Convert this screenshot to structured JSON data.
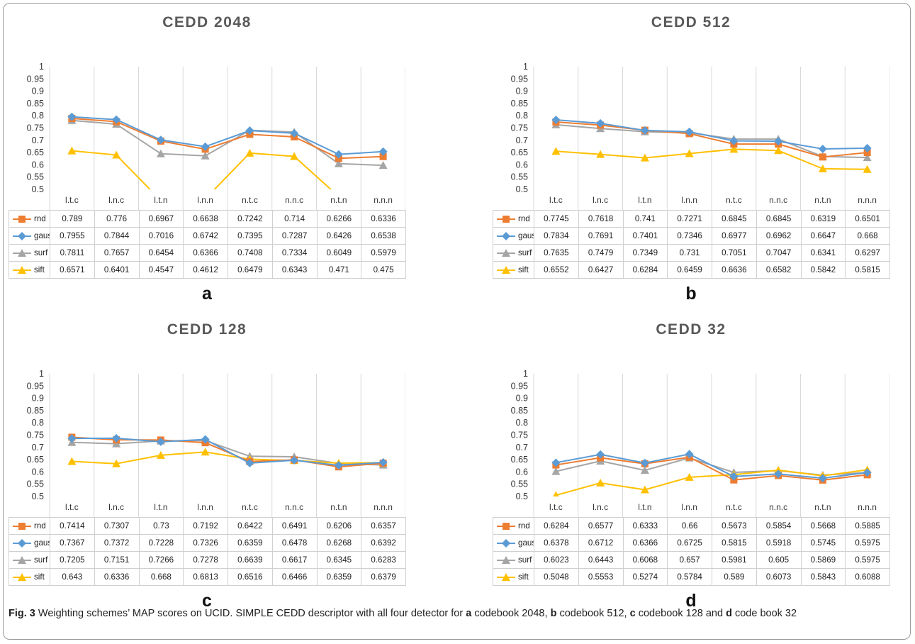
{
  "chart_data": [
    {
      "type": "line",
      "title": "CEDD 2048",
      "panel_label": "a",
      "categories": [
        "l.t.c",
        "l.n.c",
        "l.t.n",
        "l.n.n",
        "n.t.c",
        "n.n.c",
        "n.t.n",
        "n.n.n"
      ],
      "ylim": [
        0.5,
        1
      ],
      "y_ticks": [
        "0.5",
        "0.55",
        "0.6",
        "0.65",
        "0.7",
        "0.75",
        "0.8",
        "0.85",
        "0.9",
        "0.95",
        "1"
      ],
      "legend": "data-table-left",
      "series": [
        {
          "name": "rnd",
          "values": [
            "0.789",
            "0.776",
            "0.6967",
            "0.6638",
            "0.7242",
            "0.714",
            "0.6266",
            "0.6336"
          ]
        },
        {
          "name": "gauss",
          "values": [
            "0.7955",
            "0.7844",
            "0.7016",
            "0.6742",
            "0.7395",
            "0.7287",
            "0.6426",
            "0.6538"
          ]
        },
        {
          "name": "surf",
          "values": [
            "0.7811",
            "0.7657",
            "0.6454",
            "0.6366",
            "0.7408",
            "0.7334",
            "0.6049",
            "0.5979"
          ]
        },
        {
          "name": "sift",
          "values": [
            "0.6571",
            "0.6401",
            "0.4547",
            "0.4612",
            "0.6479",
            "0.6343",
            "0.471",
            "0.475"
          ]
        }
      ]
    },
    {
      "type": "line",
      "title": "CEDD 512",
      "panel_label": "b",
      "categories": [
        "l.t.c",
        "l.n.c",
        "l.t.n",
        "l.n.n",
        "n.t.c",
        "n.n.c",
        "n.t.n",
        "n.n.n"
      ],
      "ylim": [
        0.5,
        1
      ],
      "y_ticks": [
        "0.5",
        "0.55",
        "0.6",
        "0.65",
        "0.7",
        "0.75",
        "0.8",
        "0.85",
        "0.9",
        "0.95",
        "1"
      ],
      "legend": "data-table-left",
      "series": [
        {
          "name": "rnd",
          "values": [
            "0.7745",
            "0.7618",
            "0.741",
            "0.7271",
            "0.6845",
            "0.6845",
            "0.6319",
            "0.6501"
          ]
        },
        {
          "name": "gauss",
          "values": [
            "0.7834",
            "0.7691",
            "0.7401",
            "0.7346",
            "0.6977",
            "0.6962",
            "0.6647",
            "0.668"
          ]
        },
        {
          "name": "surf",
          "values": [
            "0.7635",
            "0.7479",
            "0.7349",
            "0.731",
            "0.7051",
            "0.7047",
            "0.6341",
            "0.6297"
          ]
        },
        {
          "name": "sift",
          "values": [
            "0.6552",
            "0.6427",
            "0.6284",
            "0.6459",
            "0.6636",
            "0.6582",
            "0.5842",
            "0.5815"
          ]
        }
      ]
    },
    {
      "type": "line",
      "title": "CEDD 128",
      "panel_label": "c",
      "categories": [
        "l.t.c",
        "l.n.c",
        "l.t.n",
        "l.n.n",
        "n.t.c",
        "n.n.c",
        "n.t.n",
        "n.n.n"
      ],
      "ylim": [
        0.5,
        1
      ],
      "y_ticks": [
        "0.5",
        "0.55",
        "0.6",
        "0.65",
        "0.7",
        "0.75",
        "0.8",
        "0.85",
        "0.9",
        "0.95",
        "1"
      ],
      "legend": "data-table-left",
      "series": [
        {
          "name": "rnd",
          "values": [
            "0.7414",
            "0.7307",
            "0.73",
            "0.7192",
            "0.6422",
            "0.6491",
            "0.6206",
            "0.6357"
          ]
        },
        {
          "name": "gauss",
          "values": [
            "0.7367",
            "0.7372",
            "0.7228",
            "0.7326",
            "0.6359",
            "0.6478",
            "0.6268",
            "0.6392"
          ]
        },
        {
          "name": "surf",
          "values": [
            "0.7205",
            "0.7151",
            "0.7266",
            "0.7278",
            "0.6639",
            "0.6617",
            "0.6345",
            "0.6283"
          ]
        },
        {
          "name": "sift",
          "values": [
            "0.643",
            "0.6336",
            "0.668",
            "0.6813",
            "0.6516",
            "0.6466",
            "0.6359",
            "0.6379"
          ]
        }
      ]
    },
    {
      "type": "line",
      "title": "CEDD 32",
      "panel_label": "d",
      "categories": [
        "l.t.c",
        "l.n.c",
        "l.t.n",
        "l.n.n",
        "n.t.c",
        "n.n.c",
        "n.t.n",
        "n.n.n"
      ],
      "ylim": [
        0.5,
        1
      ],
      "y_ticks": [
        "0.5",
        "0.55",
        "0.6",
        "0.65",
        "0.7",
        "0.75",
        "0.8",
        "0.85",
        "0.9",
        "0.95",
        "1"
      ],
      "legend": "data-table-left",
      "series": [
        {
          "name": "rnd",
          "values": [
            "0.6284",
            "0.6577",
            "0.6333",
            "0.66",
            "0.5673",
            "0.5854",
            "0.5668",
            "0.5885"
          ]
        },
        {
          "name": "gauss",
          "values": [
            "0.6378",
            "0.6712",
            "0.6366",
            "0.6725",
            "0.5815",
            "0.5918",
            "0.5745",
            "0.5975"
          ]
        },
        {
          "name": "surf",
          "values": [
            "0.6023",
            "0.6443",
            "0.6068",
            "0.657",
            "0.5981",
            "0.605",
            "0.5869",
            "0.5975"
          ]
        },
        {
          "name": "sift",
          "values": [
            "0.5048",
            "0.5553",
            "0.5274",
            "0.5784",
            "0.589",
            "0.6073",
            "0.5843",
            "0.6088"
          ]
        }
      ]
    }
  ],
  "series_style": {
    "rnd": {
      "color": "#ed7d31",
      "marker": "square"
    },
    "gauss": {
      "color": "#5b9bd5",
      "marker": "diamond"
    },
    "surf": {
      "color": "#a5a5a5",
      "marker": "triangle"
    },
    "sift": {
      "color": "#ffc000",
      "marker": "triangle"
    }
  },
  "caption": {
    "fig_label": "Fig. 3",
    "intro": " Weighting schemes’ MAP scores on UCID. SIMPLE CEDD descriptor with all four detector for ",
    "l1": "a",
    "t1": " codebook 2048, ",
    "l2": "b",
    "t2": " codebook 512, ",
    "l3": "c",
    "t3": " codebook 128 and ",
    "l4": "d",
    "t4": " code book 32"
  }
}
